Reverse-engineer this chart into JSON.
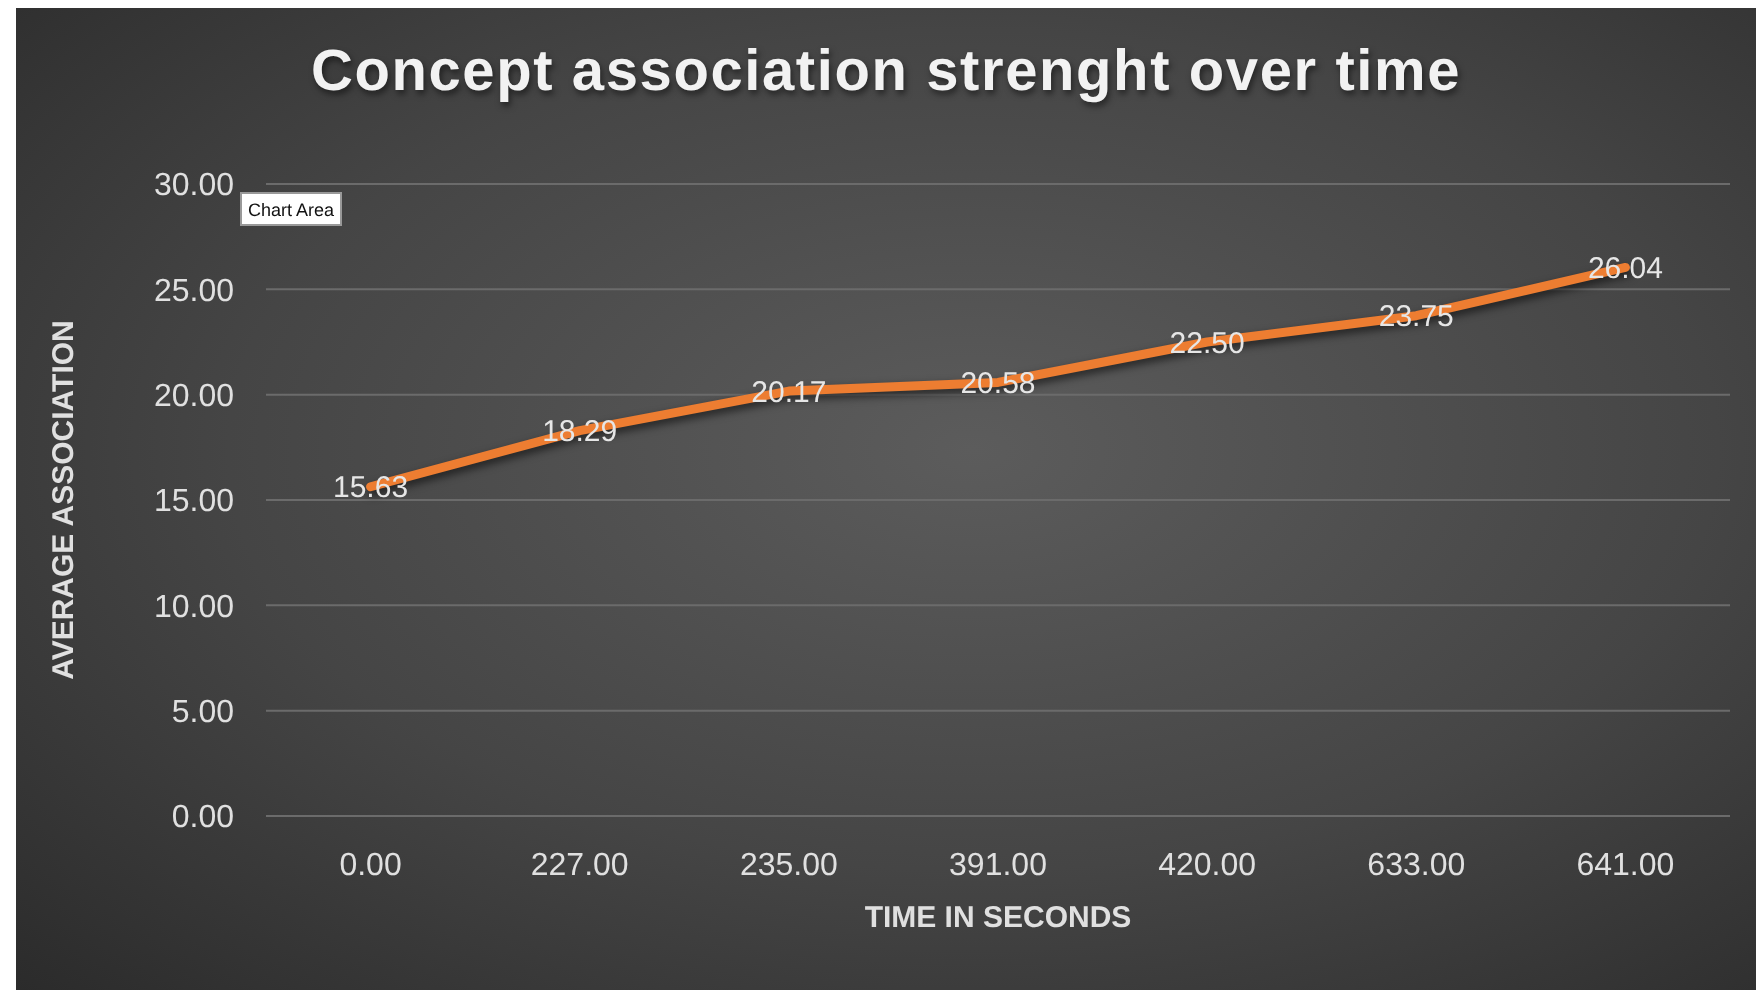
{
  "chart_data": {
    "type": "line",
    "title": "Concept association strenght over time",
    "xlabel": "TIME  IN SECONDS",
    "ylabel": "AVERAGE ASSOCIATION",
    "categories": [
      "0.00",
      "227.00",
      "235.00",
      "391.00",
      "420.00",
      "633.00",
      "641.00"
    ],
    "series": [
      {
        "color": "#ed7d31",
        "values": [
          15.63,
          18.29,
          20.17,
          20.58,
          22.5,
          23.75,
          26.04
        ],
        "value_labels": [
          "15.63",
          "18.29",
          "20.17",
          "20.58",
          "22.50",
          "23.75",
          "26.04"
        ]
      }
    ],
    "ylim": [
      0,
      30
    ],
    "yticks": [
      {
        "value": 0,
        "label": "0.00"
      },
      {
        "value": 5,
        "label": "5.00"
      },
      {
        "value": 10,
        "label": "10.00"
      },
      {
        "value": 15,
        "label": "15.00"
      },
      {
        "value": 20,
        "label": "20.00"
      },
      {
        "value": 25,
        "label": "25.00"
      },
      {
        "value": 30,
        "label": "30.00"
      }
    ],
    "grid": "y",
    "marker": "none",
    "line_style": "solid",
    "annotations": [
      "Chart Area"
    ]
  }
}
